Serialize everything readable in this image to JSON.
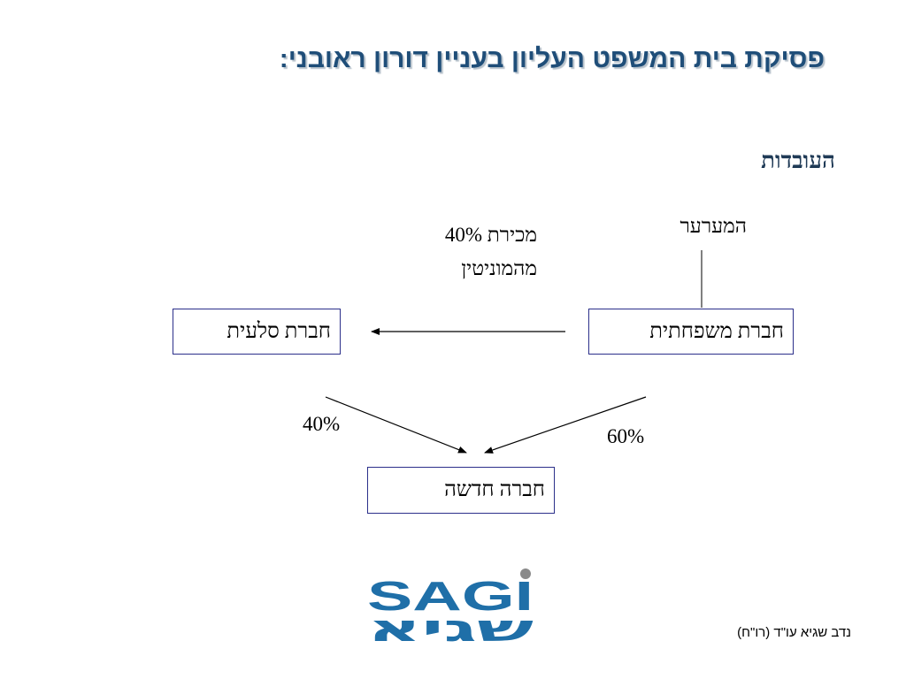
{
  "slide": {
    "title": "פסיקת בית המשפט העליון בעניין דורון ראובני:",
    "section_heading": "העובדות"
  },
  "diagram": {
    "appellant_label": "המערער",
    "sale_label_line1": "מכירת 40%",
    "sale_label_line2": "מהמוניטין",
    "family_company": "חברת משפחתית",
    "slaeit_company": "חברת סלעית",
    "new_company": "חברה חדשה",
    "share_left": "40%",
    "share_right": "60%"
  },
  "logo": {
    "latin_text": "SAGI",
    "hebrew_text": "שגיא",
    "brand_color": "#1f6fa8"
  },
  "footer": {
    "author": "נדב שגיא עו\"ד (רו\"ח)"
  }
}
